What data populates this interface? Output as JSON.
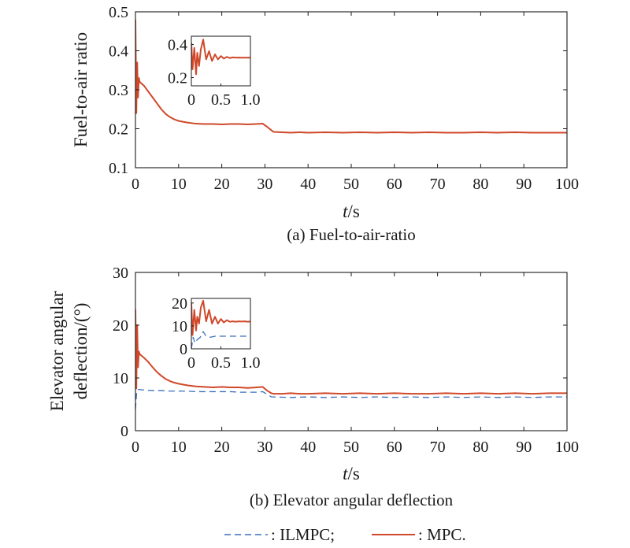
{
  "colors": {
    "ilmpc": "#3a6fbd",
    "mpc": "#d0482a",
    "axis": "#1a1a1a"
  },
  "legend": {
    "ilmpc_label": ": ILMPC;",
    "mpc_label": ": MPC."
  },
  "chart_data": [
    {
      "type": "line",
      "caption": "(a) Fuel-to-air-ratio",
      "xlabel_italic": "t",
      "xlabel_unit": "/s",
      "ylabel": "Fuel-to-air ratio",
      "xlim": [
        0,
        100
      ],
      "ylim": [
        0.1,
        0.5
      ],
      "xticks": [
        0,
        10,
        20,
        30,
        40,
        50,
        60,
        70,
        80,
        90,
        100
      ],
      "yticks": [
        0.1,
        0.2,
        0.3,
        0.4,
        0.5
      ],
      "ytick_labels": [
        "0.1",
        "0.2",
        "0.3",
        "0.4",
        "0.5"
      ],
      "series": [
        {
          "key": "mpc",
          "x": [
            0,
            0.2,
            0.4,
            0.6,
            0.8,
            1,
            2,
            3,
            4,
            5,
            6,
            7,
            8,
            9,
            10,
            12,
            14,
            16,
            18,
            20,
            22,
            24,
            26,
            28,
            29.5,
            30.5,
            31.5,
            32,
            34,
            36,
            38,
            40,
            44,
            48,
            52,
            56,
            60,
            64,
            68,
            72,
            76,
            80,
            84,
            88,
            92,
            96,
            100
          ],
          "y": [
            0.48,
            0.24,
            0.37,
            0.28,
            0.33,
            0.32,
            0.31,
            0.295,
            0.28,
            0.265,
            0.25,
            0.238,
            0.23,
            0.224,
            0.22,
            0.216,
            0.213,
            0.212,
            0.212,
            0.211,
            0.212,
            0.212,
            0.211,
            0.212,
            0.213,
            0.205,
            0.196,
            0.192,
            0.191,
            0.19,
            0.191,
            0.19,
            0.191,
            0.19,
            0.191,
            0.19,
            0.191,
            0.19,
            0.191,
            0.19,
            0.19,
            0.191,
            0.19,
            0.191,
            0.19,
            0.19,
            0.19
          ]
        }
      ],
      "inset": {
        "xlim": [
          0,
          1.0
        ],
        "ylim": [
          0.15,
          0.45
        ],
        "xticks": [
          0,
          0.5,
          1.0
        ],
        "xtick_labels": [
          "0",
          "0.5",
          "1.0"
        ],
        "yticks": [
          0.2,
          0.4
        ],
        "ytick_labels": [
          "0.2",
          "0.4"
        ],
        "series": [
          {
            "key": "mpc",
            "x": [
              0,
              0.02,
              0.05,
              0.08,
              0.1,
              0.13,
              0.16,
              0.2,
              0.25,
              0.3,
              0.35,
              0.4,
              0.45,
              0.5,
              0.55,
              0.6,
              0.65,
              0.7,
              0.75,
              0.8,
              0.85,
              0.9,
              0.95,
              1.0
            ],
            "y": [
              0.41,
              0.25,
              0.38,
              0.22,
              0.35,
              0.27,
              0.37,
              0.43,
              0.31,
              0.36,
              0.3,
              0.34,
              0.31,
              0.33,
              0.315,
              0.325,
              0.318,
              0.322,
              0.32,
              0.321,
              0.32,
              0.32,
              0.32,
              0.32
            ]
          }
        ]
      }
    },
    {
      "type": "line",
      "caption": "(b) Elevator angular deflection",
      "xlabel_italic": "t",
      "xlabel_unit": "/s",
      "ylabel_lines": [
        "Elevator angular",
        "deflection/(°)"
      ],
      "xlim": [
        0,
        100
      ],
      "ylim": [
        0,
        30
      ],
      "xticks": [
        0,
        10,
        20,
        30,
        40,
        50,
        60,
        70,
        80,
        90,
        100
      ],
      "yticks": [
        0,
        10,
        20,
        30
      ],
      "ytick_labels": [
        "0",
        "10",
        "20",
        "30"
      ],
      "series": [
        {
          "key": "ilmpc",
          "x": [
            0,
            0.3,
            0.6,
            1,
            2,
            4,
            6,
            8,
            10,
            12,
            14,
            16,
            18,
            20,
            22,
            24,
            26,
            28,
            29.5,
            30.5,
            31.5,
            32,
            36,
            40,
            44,
            48,
            52,
            56,
            60,
            64,
            68,
            72,
            76,
            80,
            84,
            88,
            92,
            96,
            100
          ],
          "y": [
            4,
            7.6,
            7.8,
            7.8,
            7.7,
            7.6,
            7.6,
            7.5,
            7.5,
            7.5,
            7.4,
            7.4,
            7.4,
            7.4,
            7.4,
            7.3,
            7.3,
            7.3,
            7.4,
            6.9,
            6.4,
            6.4,
            6.3,
            6.4,
            6.3,
            6.4,
            6.3,
            6.4,
            6.3,
            6.4,
            6.3,
            6.4,
            6.3,
            6.4,
            6.3,
            6.4,
            6.3,
            6.4,
            6.4
          ]
        },
        {
          "key": "mpc",
          "x": [
            0,
            0.2,
            0.4,
            0.6,
            0.8,
            1,
            2,
            3,
            4,
            5,
            6,
            7,
            8,
            9,
            10,
            12,
            14,
            16,
            18,
            20,
            22,
            24,
            26,
            28,
            29.5,
            30.5,
            31.5,
            32,
            34,
            36,
            38,
            40,
            44,
            48,
            52,
            56,
            60,
            64,
            68,
            72,
            76,
            80,
            84,
            88,
            92,
            96,
            100
          ],
          "y": [
            23,
            8,
            20,
            12,
            15,
            14.5,
            13.8,
            13,
            12,
            11.1,
            10.4,
            9.8,
            9.4,
            9.1,
            8.9,
            8.6,
            8.4,
            8.3,
            8.2,
            8.3,
            8.2,
            8.2,
            8.1,
            8.2,
            8.3,
            7.6,
            7.1,
            7.0,
            7.0,
            7.1,
            7.0,
            7.0,
            7.1,
            7.0,
            7.1,
            7.0,
            7.1,
            7.0,
            7.0,
            7.1,
            7.0,
            7.1,
            7.0,
            7.1,
            7.0,
            7.1,
            7.1
          ]
        }
      ],
      "inset": {
        "xlim": [
          0,
          1.0
        ],
        "ylim": [
          0,
          22
        ],
        "xticks": [
          0,
          0.5,
          1.0
        ],
        "xtick_labels": [
          "0",
          "0.5",
          "1.0"
        ],
        "yticks": [
          0,
          10,
          20
        ],
        "ytick_labels": [
          "0",
          "10",
          "20"
        ],
        "series": [
          {
            "key": "ilmpc",
            "x": [
              0,
              0.03,
              0.06,
              0.1,
              0.15,
              0.2,
              0.25,
              0.3,
              0.35,
              0.4,
              0.5,
              0.6,
              0.7,
              0.8,
              0.9,
              1.0
            ],
            "y": [
              0,
              5,
              2.5,
              4,
              5,
              7.5,
              5.5,
              5,
              5.2,
              5.5,
              5.5,
              5.5,
              5.5,
              5.5,
              5.5,
              5.5
            ]
          },
          {
            "key": "mpc",
            "x": [
              0,
              0.02,
              0.05,
              0.08,
              0.1,
              0.13,
              0.16,
              0.2,
              0.25,
              0.3,
              0.35,
              0.4,
              0.45,
              0.5,
              0.55,
              0.6,
              0.65,
              0.7,
              0.75,
              0.8,
              0.85,
              0.9,
              0.95,
              1.0
            ],
            "y": [
              20,
              6,
              17,
              8,
              14,
              11,
              18,
              21,
              12,
              17,
              11,
              14,
              11,
              13,
              11.5,
              12.5,
              11.8,
              12,
              11.8,
              12,
              11.9,
              12,
              11.8,
              11.9
            ]
          }
        ]
      }
    }
  ]
}
